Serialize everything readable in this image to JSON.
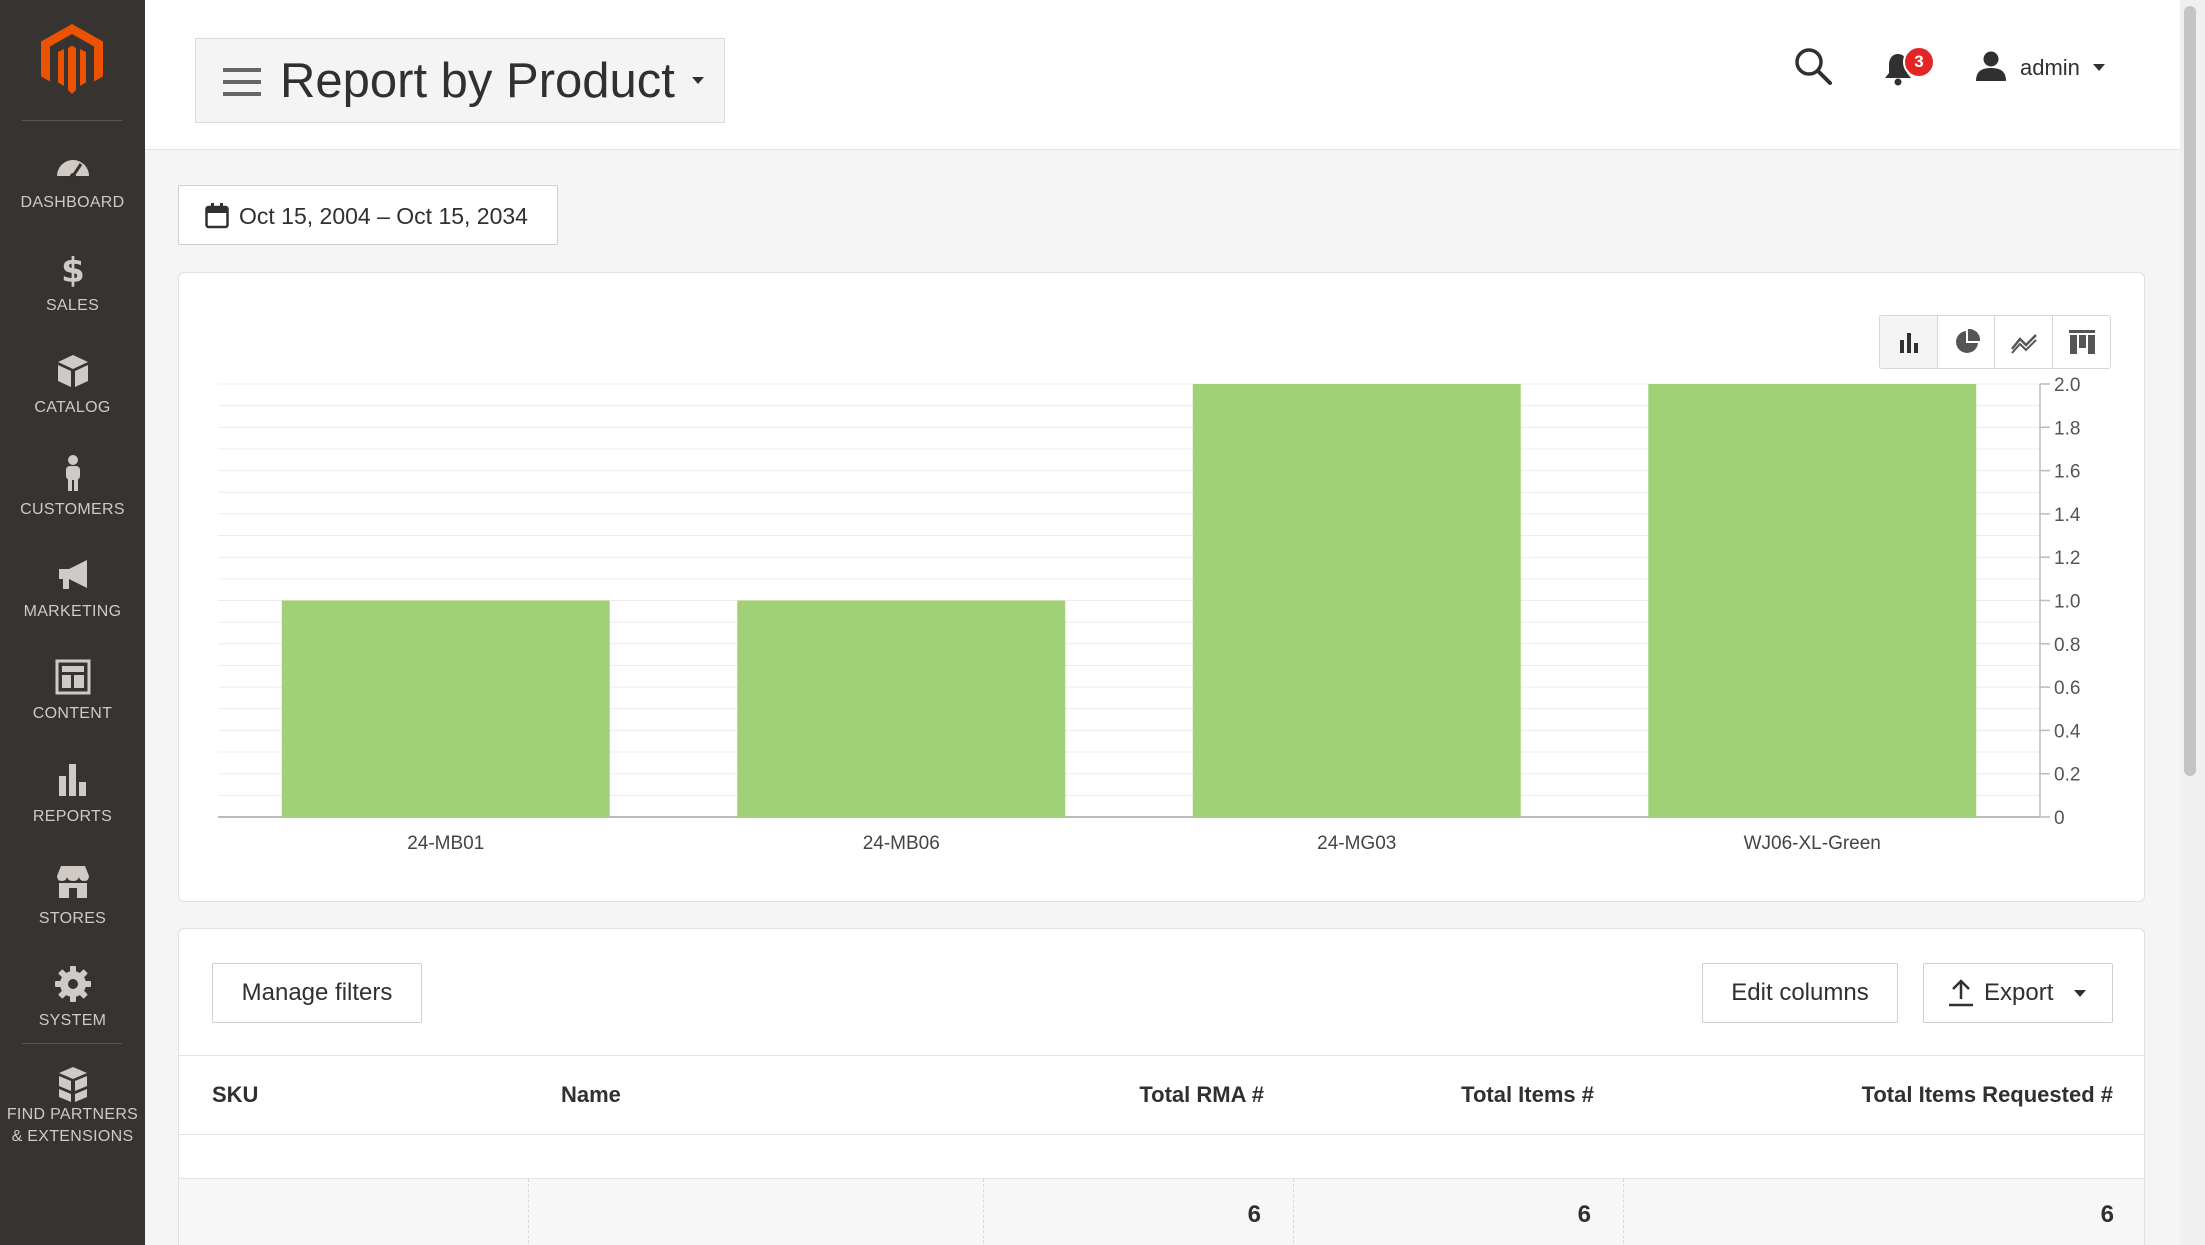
{
  "sidebar": {
    "items": [
      {
        "label": "DASHBOARD",
        "icon": "speedometer-icon"
      },
      {
        "label": "SALES",
        "icon": "dollar-icon"
      },
      {
        "label": "CATALOG",
        "icon": "cube-icon"
      },
      {
        "label": "CUSTOMERS",
        "icon": "person-icon"
      },
      {
        "label": "MARKETING",
        "icon": "megaphone-icon"
      },
      {
        "label": "CONTENT",
        "icon": "layout-icon"
      },
      {
        "label": "REPORTS",
        "icon": "bar-chart-icon"
      },
      {
        "label": "STORES",
        "icon": "storefront-icon"
      },
      {
        "label": "SYSTEM",
        "icon": "gear-icon"
      },
      {
        "label_line1": "FIND PARTNERS",
        "label_line2": "& EXTENSIONS",
        "icon": "boxes-icon"
      }
    ]
  },
  "header": {
    "title": "Report by Product",
    "notifications_count": "3",
    "user": "admin"
  },
  "date_range": "Oct 15, 2004 – Oct 15, 2034",
  "colors": {
    "sidebar_bg": "#373330",
    "bar_fill": "#a1d176",
    "brand_orange": "#eb5202",
    "badge_red": "#e22626"
  },
  "chart_data": {
    "type": "bar",
    "categories": [
      "24-MB01",
      "24-MB06",
      "24-MG03",
      "WJ06-XL-Green"
    ],
    "values": [
      1,
      1,
      2,
      2
    ],
    "title": "",
    "xlabel": "",
    "ylabel": "",
    "ylim": [
      0,
      2
    ],
    "yticks": [
      "0",
      "0.2",
      "0.4",
      "0.6",
      "0.8",
      "1.0",
      "1.2",
      "1.4",
      "1.6",
      "1.8",
      "2.0"
    ],
    "y_axis_side": "right",
    "grid": true
  },
  "grid": {
    "manage_filters": "Manage filters",
    "edit_columns": "Edit columns",
    "export": "Export",
    "columns": [
      "SKU",
      "Name",
      "Total RMA #",
      "Total Items #",
      "Total Items Requested #"
    ],
    "totals": [
      "",
      "",
      "6",
      "6",
      "6"
    ]
  }
}
